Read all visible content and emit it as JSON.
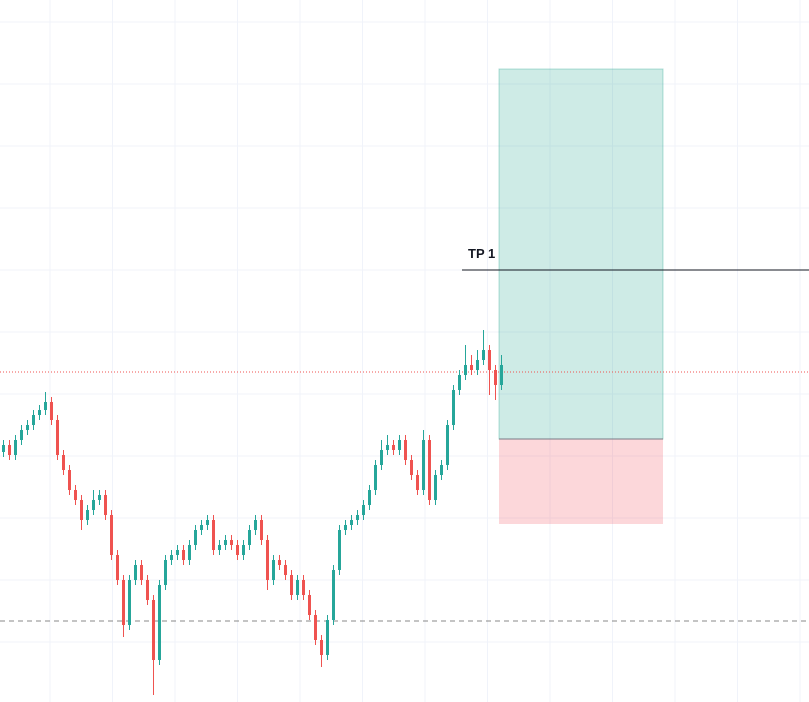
{
  "chart_data": {
    "type": "candlestick",
    "up_color": "#26a69a",
    "down_color": "#ef5350",
    "ylim": [
      0,
      702
    ],
    "open": [
      250,
      257,
      247,
      262,
      272,
      277,
      287,
      292,
      300,
      282,
      247,
      232,
      212,
      202,
      182,
      192,
      202,
      207,
      187,
      147,
      122,
      77,
      122,
      137,
      122,
      102,
      42,
      117,
      142,
      147,
      152,
      142,
      157,
      172,
      177,
      182,
      152,
      157,
      162,
      157,
      147,
      157,
      172,
      182,
      162,
      122,
      142,
      137,
      127,
      107,
      122,
      107,
      87,
      62,
      47,
      82,
      132,
      172,
      177,
      182,
      187,
      197,
      212,
      237,
      252,
      257,
      252,
      262,
      242,
      227,
      212,
      262,
      202,
      227,
      237,
      277,
      312,
      327,
      337,
      332,
      342,
      352,
      332,
      317
    ],
    "high": [
      262,
      262,
      267,
      277,
      282,
      292,
      297,
      310,
      305,
      287,
      252,
      237,
      217,
      207,
      197,
      212,
      212,
      212,
      192,
      152,
      127,
      127,
      142,
      142,
      127,
      107,
      122,
      147,
      152,
      157,
      157,
      162,
      177,
      182,
      187,
      187,
      162,
      167,
      167,
      162,
      162,
      177,
      187,
      187,
      167,
      147,
      147,
      142,
      132,
      127,
      127,
      112,
      92,
      67,
      87,
      137,
      177,
      182,
      187,
      192,
      202,
      217,
      242,
      262,
      267,
      262,
      267,
      267,
      247,
      232,
      272,
      267,
      232,
      242,
      282,
      317,
      332,
      357,
      347,
      352,
      372,
      357,
      337,
      347
    ],
    "low": [
      245,
      242,
      242,
      257,
      267,
      272,
      282,
      287,
      277,
      242,
      227,
      207,
      197,
      172,
      177,
      187,
      197,
      182,
      142,
      117,
      65,
      72,
      117,
      117,
      97,
      7,
      37,
      112,
      137,
      142,
      137,
      137,
      152,
      167,
      172,
      147,
      147,
      152,
      152,
      142,
      142,
      152,
      167,
      157,
      112,
      117,
      132,
      122,
      102,
      102,
      102,
      82,
      57,
      35,
      42,
      77,
      127,
      167,
      172,
      177,
      182,
      192,
      207,
      232,
      247,
      247,
      247,
      237,
      222,
      207,
      207,
      197,
      197,
      222,
      232,
      272,
      307,
      322,
      327,
      327,
      337,
      307,
      302,
      312
    ],
    "close": [
      257,
      247,
      262,
      272,
      277,
      287,
      292,
      300,
      282,
      247,
      232,
      212,
      202,
      182,
      192,
      202,
      207,
      187,
      147,
      122,
      77,
      122,
      137,
      122,
      102,
      42,
      117,
      142,
      147,
      152,
      142,
      157,
      172,
      177,
      182,
      152,
      157,
      162,
      157,
      147,
      157,
      172,
      182,
      162,
      122,
      142,
      137,
      127,
      107,
      122,
      107,
      87,
      62,
      47,
      82,
      132,
      172,
      177,
      182,
      187,
      197,
      212,
      237,
      252,
      257,
      252,
      262,
      242,
      227,
      212,
      262,
      202,
      227,
      237,
      277,
      312,
      327,
      337,
      332,
      342,
      352,
      332,
      317,
      337
    ],
    "current_price": 330,
    "reference_level": 81,
    "position": {
      "target": 633,
      "entry": 263,
      "stop": 178
    },
    "tp_line": {
      "label": "TP 1",
      "value": 432
    }
  }
}
